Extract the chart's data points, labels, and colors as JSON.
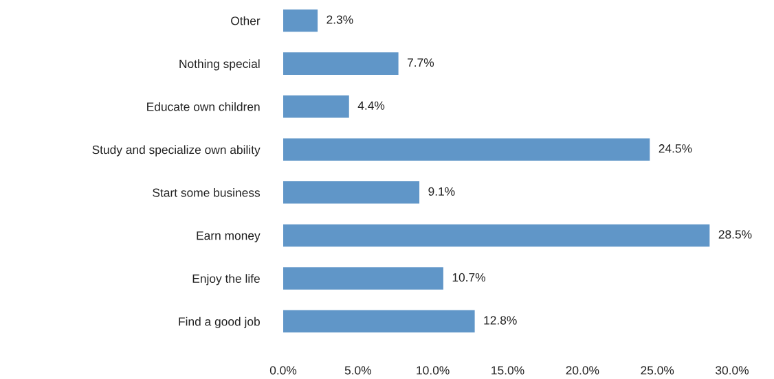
{
  "chart_data": {
    "type": "bar",
    "orientation": "horizontal",
    "categories": [
      "Other",
      "Nothing special",
      "Educate own children",
      "Study and specialize own ability",
      "Start some business",
      "Earn money",
      "Enjoy the life",
      "Find a good job"
    ],
    "values": [
      2.3,
      7.7,
      4.4,
      24.5,
      9.1,
      28.5,
      10.7,
      12.8
    ],
    "value_labels": [
      "2.3%",
      "7.7%",
      "4.4%",
      "24.5%",
      "9.1%",
      "28.5%",
      "10.7%",
      "12.8%"
    ],
    "color": "#6096c8",
    "xlim": [
      0,
      30
    ],
    "xticks": [
      {
        "value": 0,
        "label": "0.0%"
      },
      {
        "value": 5,
        "label": "5.0%"
      },
      {
        "value": 10,
        "label": "10.0%"
      },
      {
        "value": 15,
        "label": "15.0%"
      },
      {
        "value": 20,
        "label": "20.0%"
      },
      {
        "value": 25,
        "label": "25.0%"
      },
      {
        "value": 30,
        "label": "30.0%"
      }
    ],
    "grid": false,
    "legend": false
  }
}
